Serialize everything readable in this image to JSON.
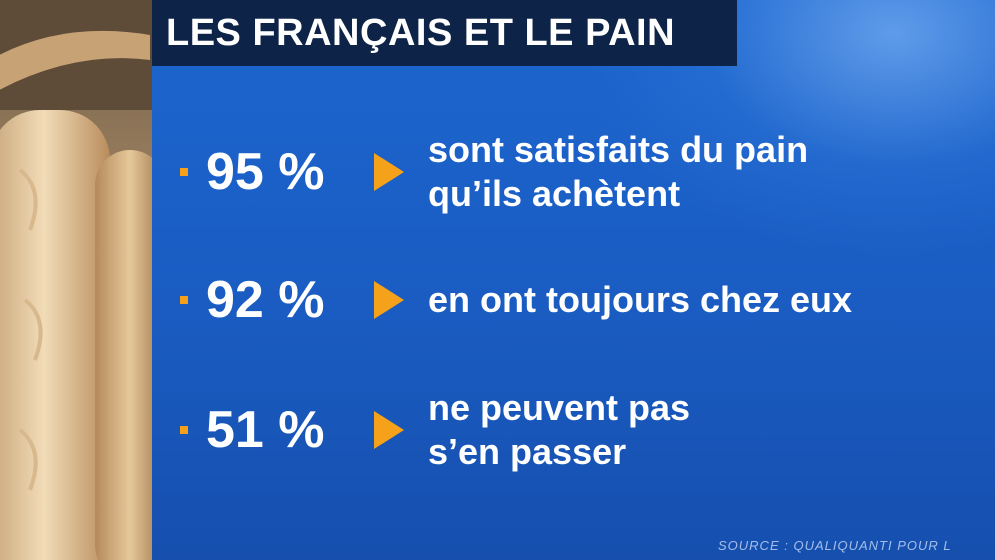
{
  "title": "LES FRANÇAIS ET LE PAIN",
  "stats": [
    {
      "value": "95 %",
      "line1": "sont satisfaits du pain",
      "line2": "qu’ils achètent"
    },
    {
      "value": "92 %",
      "line1": "en ont toujours chez eux",
      "line2": ""
    },
    {
      "value": "51 %",
      "line1": "ne peuvent pas",
      "line2": "s’en passer"
    }
  ],
  "source": "SOURCE : QUALIQUANTI POUR L",
  "colors": {
    "panel": "#1b5fc4",
    "title_bar": "#0d2347",
    "accent": "#f5a21a",
    "text": "#ffffff"
  },
  "image": {
    "subject": "baguettes-bread-photo"
  }
}
